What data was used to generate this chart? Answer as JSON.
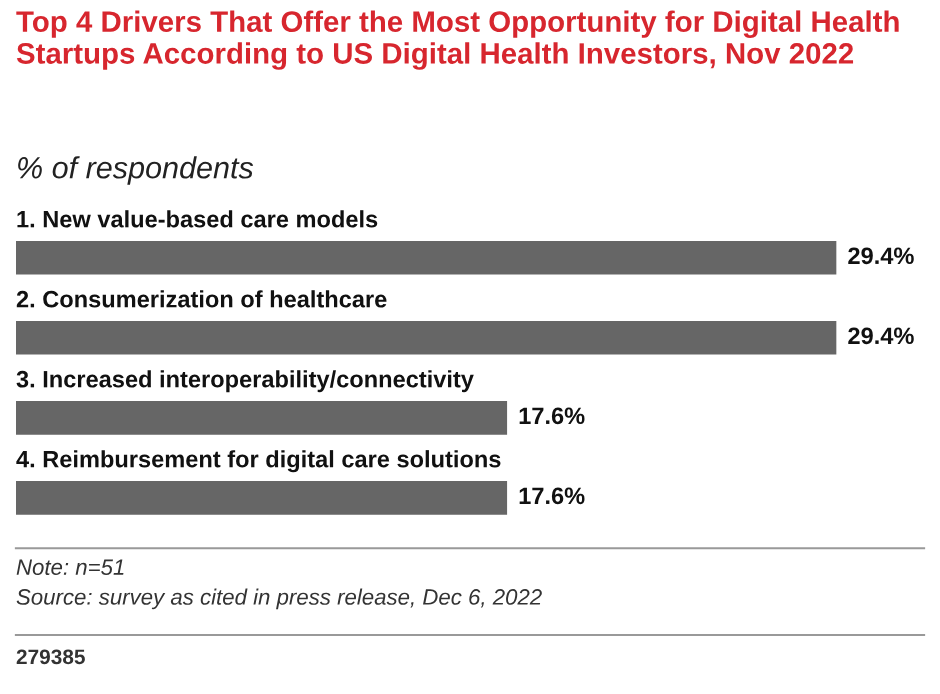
{
  "chart_data": {
    "type": "bar",
    "orientation": "horizontal",
    "title": "Top 4 Drivers That Offer the Most Opportunity for Digital Health Startups According to US Digital Health Investors, Nov 2022",
    "subtitle": "% of respondents",
    "categories": [
      "1. New value-based care models",
      "2. Consumerization of healthcare",
      "3. Increased interoperability/connectivity",
      "4. Reimbursement for digital care solutions"
    ],
    "values": [
      29.4,
      29.4,
      17.6,
      17.6
    ],
    "value_labels": [
      "29.4%",
      "29.4%",
      "17.6%",
      "17.6%"
    ],
    "color": "#666666",
    "annotations": [
      "Note: n=51",
      "Source: survey as cited in press release, Dec 6, 2022",
      "279385"
    ]
  }
}
